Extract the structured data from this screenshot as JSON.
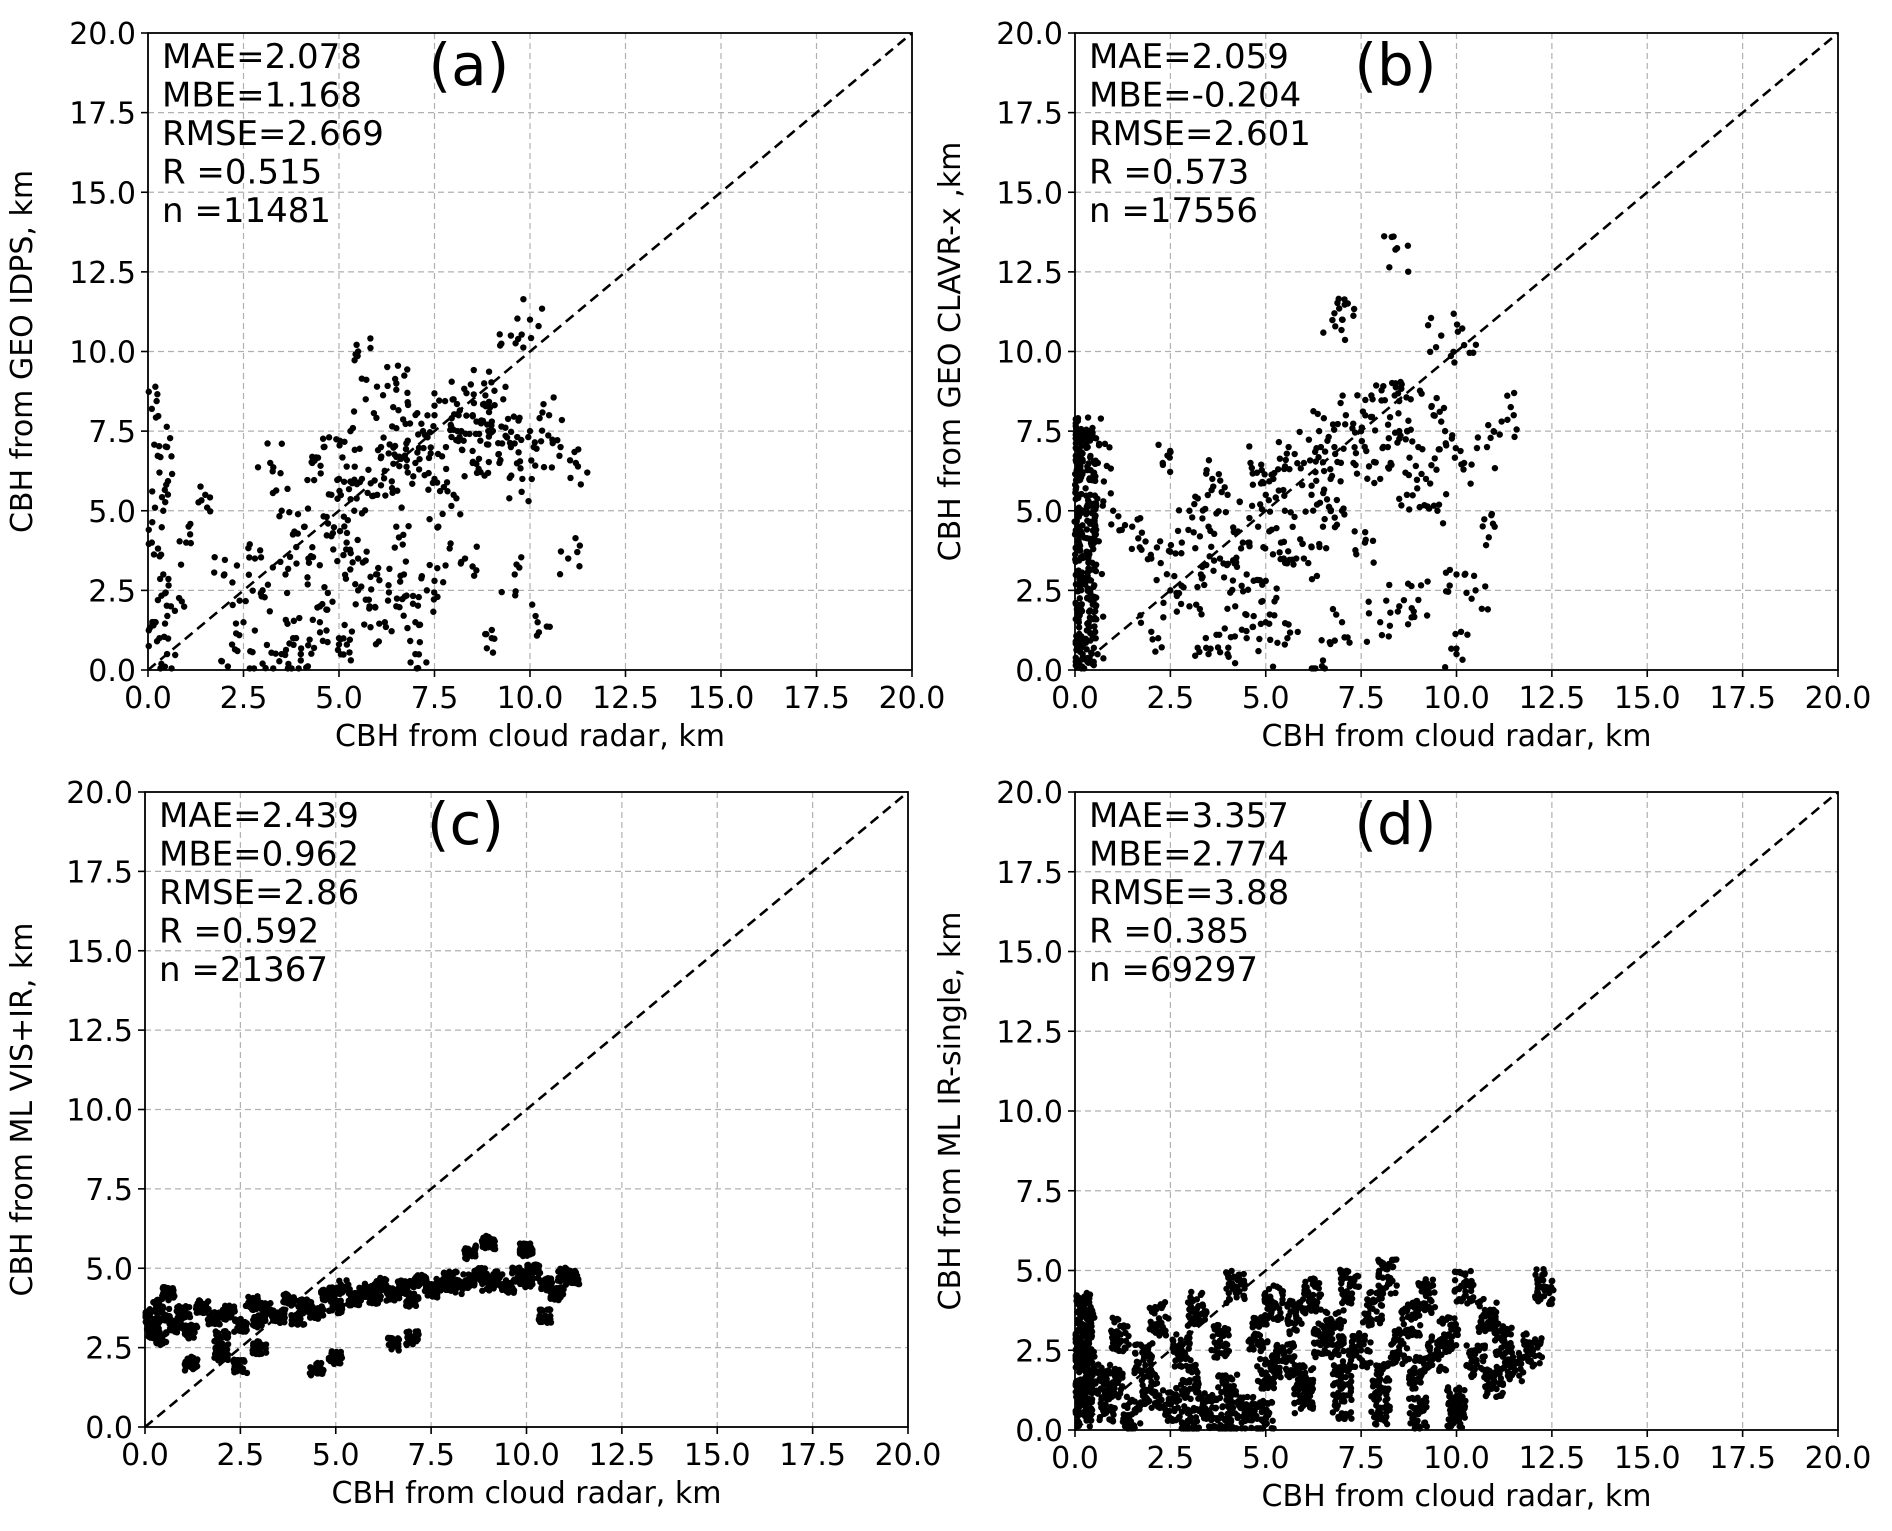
{
  "figure": {
    "background": "#ffffff",
    "point_color": "#000000"
  },
  "chart_data": [
    {
      "type": "scatter",
      "panel": "(a)",
      "xlabel": "CBH from cloud radar, km",
      "ylabel": "CBH from GEO IDPS, km",
      "xlim": [
        0,
        20
      ],
      "ylim": [
        0,
        20
      ],
      "ticks": [
        "0.0",
        "2.5",
        "5.0",
        "7.5",
        "10.0",
        "12.5",
        "15.0",
        "17.5",
        "20.0"
      ],
      "grid": true,
      "reference_line": "1:1 dashed",
      "stats": [
        "MAE=2.078",
        "MBE=1.168",
        "RMSE=2.669",
        "R =0.515",
        "n =11481"
      ],
      "x": [
        0.1,
        0.1,
        0.2,
        0.3,
        0.4,
        0.5,
        0.5,
        0.6,
        0.4,
        0.3,
        1.0,
        1.5,
        2.0,
        2.2,
        2.5,
        2.8,
        3.0,
        3.2,
        3.5,
        3.6,
        3.8,
        4.0,
        4.1,
        4.3,
        4.5,
        4.6,
        4.8,
        5.0,
        5.0,
        5.2,
        5.3,
        5.5,
        5.6,
        5.7,
        5.8,
        6.0,
        6.1,
        6.2,
        6.3,
        6.5,
        6.5,
        6.7,
        6.8,
        7.0,
        7.0,
        7.2,
        7.3,
        7.5,
        7.5,
        7.6,
        7.8,
        8.0,
        8.0,
        8.2,
        8.3,
        8.5,
        8.5,
        8.7,
        8.8,
        9.0,
        9.0,
        9.2,
        9.3,
        9.5,
        9.6,
        9.8,
        10.0,
        10.2,
        10.5,
        10.8,
        11.0,
        11.2,
        3.0,
        3.5,
        4.0,
        4.5,
        5.0,
        5.5,
        6.0,
        6.5,
        7.0,
        7.5,
        4.2,
        4.8,
        5.4,
        6.1,
        6.8,
        7.4,
        8.1,
        8.6,
        9.4,
        10.1,
        5.5,
        6.5,
        9.5,
        10.0
      ],
      "y": [
        8.2,
        4.0,
        1.5,
        6.2,
        3.0,
        0.5,
        7.0,
        2.0,
        5.0,
        1.0,
        4.0,
        5.5,
        3.0,
        0.8,
        1.5,
        3.5,
        2.5,
        6.5,
        5.0,
        3.0,
        1.0,
        0.5,
        4.5,
        6.5,
        2.0,
        7.0,
        5.5,
        1.0,
        6.0,
        4.0,
        7.5,
        3.5,
        6.0,
        8.5,
        2.0,
        5.5,
        7.0,
        1.5,
        6.8,
        4.5,
        8.8,
        3.0,
        7.2,
        0.5,
        6.5,
        7.5,
        2.5,
        6.0,
        8.0,
        4.5,
        7.0,
        8.5,
        5.5,
        7.5,
        3.5,
        8.0,
        6.5,
        7.2,
        9.0,
        7.8,
        1.0,
        6.5,
        8.5,
        7.0,
        3.0,
        6.0,
        7.5,
        1.5,
        8.0,
        7.0,
        3.5,
        6.5,
        0.2,
        0.5,
        0.3,
        1.5,
        0.8,
        2.5,
        3.0,
        2.0,
        1.5,
        2.8,
        3.5,
        4.2,
        5.0,
        5.8,
        6.2,
        6.8,
        7.5,
        7.8,
        7.3,
        7.0,
        10.0,
        9.0,
        10.5,
        11.0
      ]
    },
    {
      "type": "scatter",
      "panel": "(b)",
      "xlabel": "CBH from cloud radar, km",
      "ylabel": "CBH from GEO CLAVR-x ,km",
      "xlim": [
        0,
        20
      ],
      "ylim": [
        0,
        20
      ],
      "ticks": [
        "0.0",
        "2.5",
        "5.0",
        "7.5",
        "10.0",
        "12.5",
        "15.0",
        "17.5",
        "20.0"
      ],
      "grid": true,
      "reference_line": "1:1 dashed",
      "stats": [
        "MAE=2.059",
        "MBE=-0.204",
        "RMSE=2.601",
        "R =0.573",
        "n =17556"
      ],
      "x": [
        0.05,
        0.1,
        0.1,
        0.15,
        0.2,
        0.3,
        0.4,
        0.4,
        0.5,
        0.5,
        0.6,
        0.1,
        0.2,
        0.4,
        1.0,
        1.5,
        2.0,
        2.3,
        2.5,
        2.8,
        3.0,
        3.3,
        3.5,
        3.6,
        3.8,
        4.0,
        4.2,
        4.4,
        4.5,
        4.6,
        4.8,
        5.0,
        5.0,
        5.2,
        5.4,
        5.5,
        5.6,
        5.8,
        6.0,
        6.2,
        6.4,
        6.5,
        6.7,
        6.8,
        7.0,
        7.1,
        7.3,
        7.5,
        7.6,
        7.8,
        8.0,
        8.2,
        8.4,
        8.5,
        8.7,
        8.8,
        9.0,
        9.2,
        9.4,
        9.5,
        9.7,
        10.0,
        10.2,
        10.5,
        10.8,
        11.0,
        11.5,
        3.5,
        4.5,
        5.5,
        6.5,
        8.0,
        9.0,
        10.0,
        2.0,
        3.0,
        4.0,
        5.0,
        6.0,
        7.0,
        8.5,
        6.8,
        7.0,
        8.4,
        9.6,
        10.2
      ],
      "y": [
        7.5,
        6.0,
        1.5,
        3.5,
        0.5,
        5.0,
        7.5,
        2.5,
        4.0,
        1.0,
        6.5,
        0.2,
        2.8,
        5.5,
        5.0,
        4.5,
        3.5,
        6.5,
        2.5,
        4.0,
        5.0,
        3.0,
        4.5,
        6.0,
        3.5,
        5.5,
        2.0,
        4.0,
        3.0,
        6.5,
        4.5,
        5.5,
        1.5,
        6.0,
        4.0,
        5.0,
        7.0,
        3.5,
        6.5,
        5.5,
        7.5,
        4.5,
        6.0,
        7.0,
        5.0,
        8.0,
        6.5,
        7.5,
        4.0,
        8.5,
        6.0,
        7.0,
        9.0,
        7.5,
        5.5,
        8.5,
        7.0,
        6.0,
        8.0,
        5.0,
        7.5,
        3.0,
        6.5,
        2.5,
        7.0,
        4.5,
        8.0,
        0.5,
        1.0,
        0.8,
        0.3,
        1.5,
        2.2,
        0.5,
        1.2,
        2.0,
        0.5,
        2.8,
        3.5,
        1.5,
        2.0,
        11.2,
        11.0,
        13.2,
        10.5,
        10.2
      ]
    },
    {
      "type": "scatter",
      "panel": "(c)",
      "xlabel": "CBH from cloud radar, km",
      "ylabel": "CBH from ML VIS+IR, km",
      "xlim": [
        0,
        20
      ],
      "ylim": [
        0,
        20
      ],
      "ticks": [
        "0.0",
        "2.5",
        "5.0",
        "7.5",
        "10.0",
        "12.5",
        "15.0",
        "17.5",
        "20.0"
      ],
      "grid": true,
      "reference_line": "1:1 dashed",
      "stats": [
        "MAE=2.439",
        "MBE=0.962",
        "RMSE=2.86",
        "R =0.592",
        "n =21367"
      ],
      "x": [
        0.1,
        0.2,
        0.3,
        0.4,
        0.5,
        0.6,
        0.8,
        1.0,
        1.2,
        1.5,
        1.8,
        2.0,
        2.2,
        2.5,
        2.8,
        3.0,
        3.2,
        3.5,
        3.8,
        4.0,
        4.2,
        4.5,
        4.8,
        5.0,
        5.2,
        5.5,
        5.8,
        6.0,
        6.2,
        6.5,
        6.8,
        7.0,
        7.2,
        7.5,
        7.8,
        8.0,
        8.2,
        8.5,
        8.8,
        9.0,
        9.2,
        9.5,
        9.8,
        10.0,
        10.2,
        10.5,
        10.8,
        11.0,
        11.2,
        1.2,
        2.0,
        2.5,
        3.0,
        4.5,
        5.0,
        6.5,
        7.0,
        8.5,
        9.0,
        10.0,
        10.5
      ],
      "y": [
        3.5,
        3.0,
        3.8,
        2.8,
        3.5,
        4.2,
        3.2,
        3.6,
        3.0,
        3.8,
        3.4,
        2.8,
        3.6,
        3.2,
        3.9,
        3.3,
        3.7,
        3.5,
        4.0,
        3.4,
        3.8,
        3.6,
        4.2,
        3.8,
        4.4,
        4.0,
        4.3,
        4.1,
        4.5,
        4.2,
        4.4,
        4.0,
        4.6,
        4.3,
        4.5,
        4.7,
        4.4,
        4.6,
        4.8,
        4.5,
        4.7,
        4.4,
        4.8,
        4.6,
        4.9,
        4.5,
        4.2,
        4.8,
        4.7,
        2.0,
        2.3,
        1.9,
        2.5,
        1.8,
        2.2,
        2.6,
        2.8,
        5.5,
        5.8,
        5.6,
        3.5
      ]
    },
    {
      "type": "scatter",
      "panel": "(d)",
      "xlabel": "CBH from cloud radar, km",
      "ylabel": "CBH from ML IR-single, km",
      "xlim": [
        0,
        20
      ],
      "ylim": [
        0,
        20
      ],
      "ticks": [
        "0.0",
        "2.5",
        "5.0",
        "7.5",
        "10.0",
        "12.5",
        "15.0",
        "17.5",
        "20.0"
      ],
      "grid": true,
      "reference_line": "1:1 dashed",
      "stats": [
        "MAE=3.357",
        "MBE=2.774",
        "RMSE=3.88",
        "R =0.385",
        "n =69297"
      ],
      "x": [
        0.1,
        0.2,
        0.3,
        0.5,
        0.8,
        1.0,
        1.2,
        1.5,
        1.8,
        2.0,
        2.2,
        2.5,
        2.8,
        3.0,
        3.2,
        3.5,
        3.8,
        4.0,
        4.2,
        4.5,
        4.8,
        5.0,
        5.2,
        5.5,
        5.8,
        6.0,
        6.2,
        6.5,
        6.8,
        7.0,
        7.2,
        7.5,
        7.8,
        8.0,
        8.2,
        8.5,
        8.8,
        9.0,
        9.2,
        9.5,
        9.8,
        10.0,
        10.2,
        10.5,
        10.8,
        11.0,
        11.2,
        11.5,
        12.0,
        12.3,
        3.0,
        4.0,
        5.0,
        6.0,
        7.0,
        8.0,
        9.0,
        10.0
      ],
      "y": [
        2.5,
        1.0,
        3.5,
        2.0,
        0.8,
        1.5,
        3.0,
        0.5,
        2.2,
        1.2,
        3.5,
        0.8,
        2.5,
        1.5,
        3.8,
        0.6,
        2.8,
        1.2,
        4.5,
        0.5,
        3.0,
        1.8,
        4.0,
        2.2,
        3.5,
        1.5,
        4.2,
        2.8,
        3.2,
        2.0,
        4.5,
        2.5,
        3.8,
        1.6,
        4.8,
        2.6,
        3.5,
        1.8,
        4.2,
        2.4,
        3.0,
        0.8,
        4.5,
        2.2,
        3.6,
        1.5,
        2.8,
        2.0,
        2.5,
        4.5,
        0.3,
        0.2,
        0.4,
        1.0,
        0.9,
        0.7,
        0.5,
        0.6
      ]
    }
  ]
}
